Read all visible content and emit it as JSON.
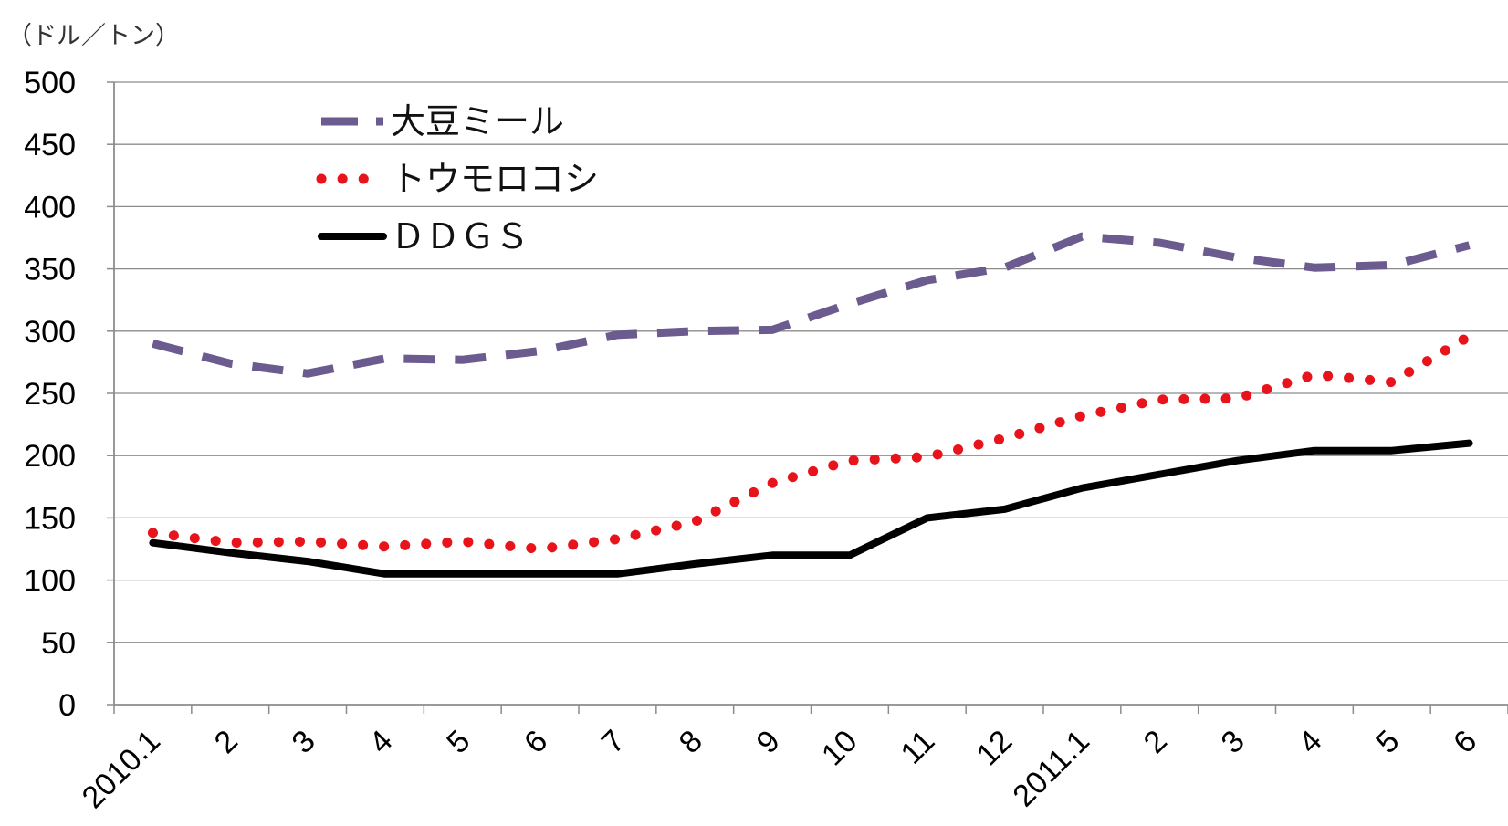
{
  "chart_data": {
    "type": "line",
    "unit_label": "（ドル／トン）",
    "ylim": [
      0,
      500
    ],
    "yticks": [
      0,
      50,
      100,
      150,
      200,
      250,
      300,
      350,
      400,
      450,
      500
    ],
    "grid": true,
    "legend_position": "top-left",
    "categories": [
      "2010.1",
      "2",
      "3",
      "4",
      "5",
      "6",
      "7",
      "8",
      "9",
      "10",
      "11",
      "12",
      "2011.1",
      "2",
      "3",
      "4",
      "5",
      "6"
    ],
    "series": [
      {
        "name": "大豆ミール",
        "style": "dashed",
        "color": "#6b5b8e",
        "values": [
          290,
          274,
          266,
          278,
          277,
          284,
          297,
          300,
          301,
          322,
          341,
          351,
          376,
          371,
          359,
          351,
          353,
          369
        ]
      },
      {
        "name": "トウモロコシ",
        "style": "dotted",
        "color": "#e8141c",
        "values": [
          138,
          130,
          131,
          127,
          131,
          125,
          133,
          147,
          178,
          196,
          199,
          214,
          232,
          245,
          246,
          265,
          259,
          296
        ]
      },
      {
        "name": "ＤＤＧＳ",
        "style": "solid",
        "color": "#000000",
        "values": [
          130,
          122,
          115,
          105,
          105,
          105,
          105,
          113,
          120,
          120,
          150,
          157,
          174,
          185,
          196,
          204,
          204,
          210
        ]
      }
    ]
  }
}
